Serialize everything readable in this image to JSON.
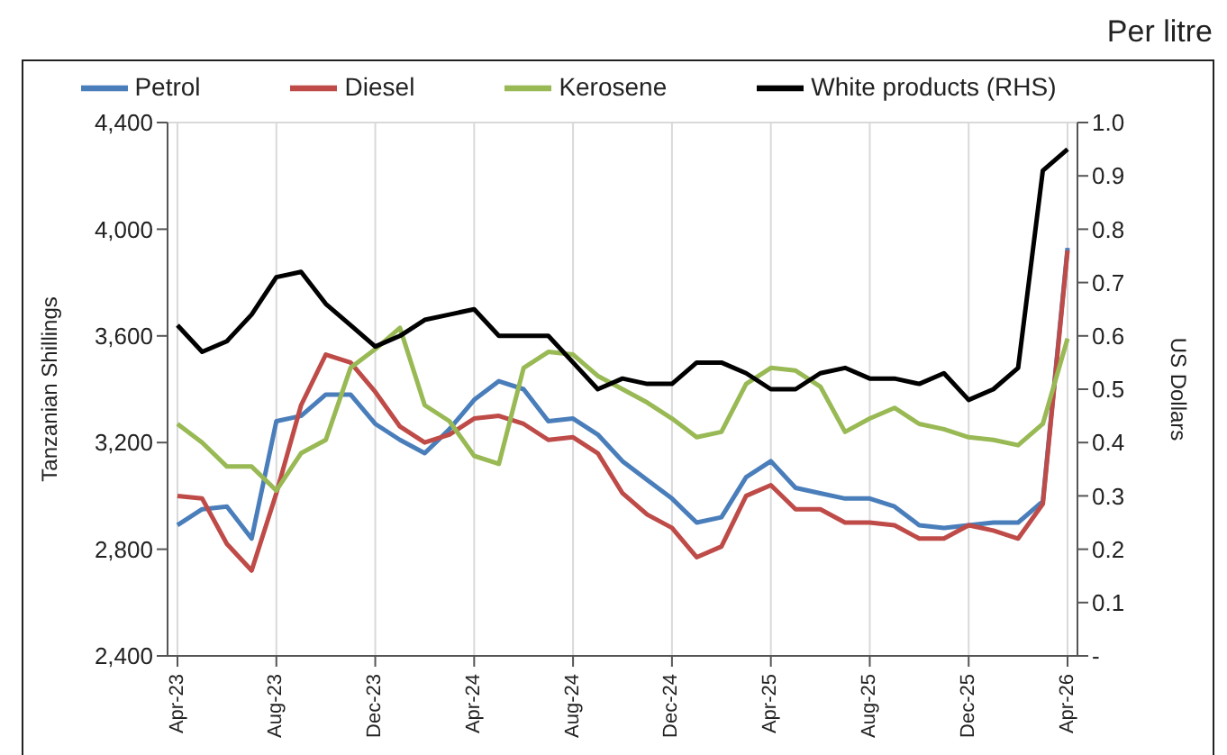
{
  "chart_data": {
    "type": "line",
    "title": "Per litre",
    "ylabel": "Tanzanian Shillings",
    "y2label": "US Dollars",
    "categories": [
      "Apr-23",
      null,
      null,
      null,
      "Aug-23",
      null,
      null,
      null,
      "Dec-23",
      null,
      null,
      null,
      "Apr-24",
      null,
      null,
      null,
      "Aug-24",
      null,
      null,
      null,
      "Dec-24",
      null,
      null,
      null,
      "Apr-25",
      null,
      null,
      null,
      "Aug-25",
      null,
      null,
      null,
      "Dec-25",
      null,
      null,
      null,
      "Apr-26"
    ],
    "series": [
      {
        "name": "Petrol",
        "color": "#4a7ebb",
        "values": [
          2890,
          2950,
          2960,
          2840,
          3280,
          3300,
          3380,
          3380,
          3270,
          3210,
          3160,
          3250,
          3360,
          3430,
          3400,
          3280,
          3290,
          3230,
          3130,
          3060,
          2990,
          2900,
          2920,
          3070,
          3130,
          3030,
          3010,
          2990,
          2990,
          2960,
          2890,
          2880,
          2890,
          2900,
          2900,
          2980,
          3930
        ]
      },
      {
        "name": "Diesel",
        "color": "#be4b48",
        "values": [
          3000,
          2990,
          2820,
          2720,
          3010,
          3340,
          3530,
          3500,
          3390,
          3260,
          3200,
          3230,
          3290,
          3300,
          3270,
          3210,
          3220,
          3160,
          3010,
          2930,
          2880,
          2770,
          2810,
          3000,
          3040,
          2950,
          2950,
          2900,
          2900,
          2890,
          2840,
          2840,
          2890,
          2870,
          2840,
          2970,
          3920
        ]
      },
      {
        "name": "Kerosene",
        "color": "#98b954",
        "values": [
          3270,
          3200,
          3110,
          3110,
          3020,
          3160,
          3210,
          3480,
          3550,
          3630,
          3340,
          3280,
          3150,
          3120,
          3480,
          3540,
          3530,
          3450,
          3400,
          3350,
          3290,
          3220,
          3240,
          3420,
          3480,
          3470,
          3410,
          3240,
          3290,
          3330,
          3270,
          3250,
          3220,
          3210,
          3190,
          3270,
          3590
        ]
      },
      {
        "name": "White products (RHS)",
        "color": "#000000",
        "axis": "y2",
        "values": [
          0.62,
          0.57,
          0.59,
          0.64,
          0.71,
          0.72,
          0.66,
          0.62,
          0.58,
          0.6,
          0.63,
          0.64,
          0.65,
          0.6,
          0.6,
          0.6,
          0.55,
          0.5,
          0.52,
          0.51,
          0.51,
          0.55,
          0.55,
          0.53,
          0.5,
          0.5,
          0.53,
          0.54,
          0.52,
          0.52,
          0.51,
          0.53,
          0.48,
          0.5,
          0.54,
          0.91,
          0.95
        ]
      }
    ],
    "ylim": [
      2400,
      4400
    ],
    "yticks": [
      {
        "value": 2400,
        "label": "2,400"
      },
      {
        "value": 2800,
        "label": "2,800"
      },
      {
        "value": 3200,
        "label": "3,200"
      },
      {
        "value": 3600,
        "label": "3,600"
      },
      {
        "value": 4000,
        "label": "4,000"
      },
      {
        "value": 4400,
        "label": "4,400"
      }
    ],
    "y2lim": [
      0,
      1
    ],
    "y2ticks": [
      {
        "value": 0,
        "label": "-"
      },
      0.1,
      0.2,
      0.3,
      0.4,
      0.5,
      0.6,
      0.7,
      0.8,
      0.9,
      {
        "value": 1,
        "label": "1.0"
      }
    ],
    "grid": true,
    "legend": "top",
    "marker": "none",
    "line_style": "solid"
  }
}
